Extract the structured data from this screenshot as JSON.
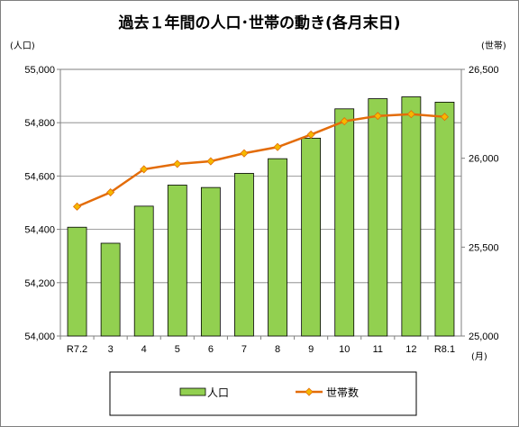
{
  "chart_data": {
    "type": "bar+line",
    "title": "過去１年間の人口･世帯の動き(各月末日)",
    "categories": [
      "R7.2",
      "3",
      "4",
      "5",
      "6",
      "7",
      "8",
      "9",
      "10",
      "11",
      "12",
      "R8.1"
    ],
    "y_left": {
      "unit": "(人口)",
      "ylim": [
        54000,
        55000
      ],
      "ticks": [
        "54,000",
        "54,200",
        "54,400",
        "54,600",
        "54,800",
        "55,000"
      ],
      "tick_values": [
        54000,
        54200,
        54400,
        54600,
        54800,
        55000
      ]
    },
    "y_right": {
      "unit": "(世帯)",
      "ylim": [
        25000,
        26500
      ],
      "ticks": [
        "25,000",
        "25,500",
        "26,000",
        "26,500"
      ],
      "tick_values": [
        25000,
        25500,
        26000,
        26500
      ]
    },
    "x_unit": "(月)",
    "series": [
      {
        "name": "人口",
        "type": "bar",
        "axis": "left",
        "color": "#92d050",
        "values": [
          54408,
          54348,
          54487,
          54566,
          54557,
          54610,
          54665,
          54742,
          54852,
          54890,
          54897,
          54877
        ]
      },
      {
        "name": "世帯数",
        "type": "line",
        "axis": "right",
        "color": "#e36c09",
        "values": [
          25728,
          25808,
          25938,
          25968,
          25983,
          26028,
          26063,
          26133,
          26208,
          26238,
          26248,
          26233
        ]
      }
    ],
    "grid": true,
    "legend": "bottom"
  }
}
